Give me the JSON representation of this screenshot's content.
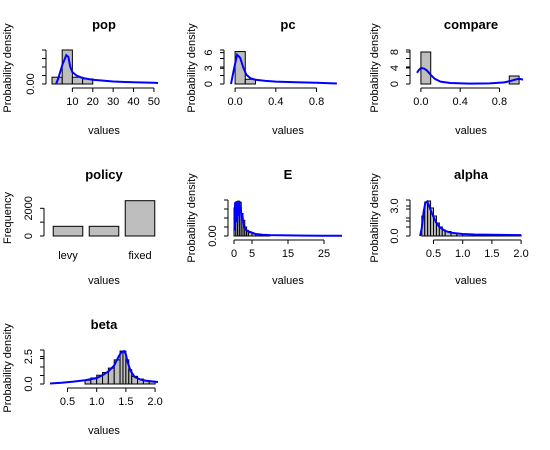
{
  "chart_data": [
    {
      "id": "pop",
      "type": "histogram",
      "title": "pop",
      "xlabel": "values",
      "ylabel": "Probability density",
      "xlim": [
        0,
        52
      ],
      "ylim": [
        0,
        0.2
      ],
      "xticks": [
        10,
        20,
        30,
        40,
        50
      ],
      "yticks": [
        0.0
      ],
      "ytick_labels": [
        "0.00"
      ],
      "bins": [
        [
          0,
          5,
          0.04
        ],
        [
          5,
          10,
          0.2
        ],
        [
          10,
          15,
          0.04
        ],
        [
          15,
          20,
          0.03
        ]
      ],
      "density_x": [
        2,
        3,
        5,
        7,
        8,
        9,
        10,
        12,
        15,
        20,
        25,
        30,
        40,
        50,
        52
      ],
      "density_y": [
        0.0,
        0.03,
        0.11,
        0.17,
        0.16,
        0.1,
        0.07,
        0.05,
        0.035,
        0.025,
        0.02,
        0.015,
        0.01,
        0.007,
        0.006
      ]
    },
    {
      "id": "pc",
      "type": "histogram",
      "title": "pc",
      "xlabel": "values",
      "ylabel": "Probability density",
      "xlim": [
        -0.05,
        1.05
      ],
      "ylim": [
        0,
        6.5
      ],
      "xticks": [
        0.0,
        0.4,
        0.8
      ],
      "xtick_labels": [
        "0.0",
        "0.4",
        "0.8"
      ],
      "yticks": [
        0,
        3,
        6
      ],
      "ytick_labels": [
        "0",
        "3",
        "6"
      ],
      "bins": [
        [
          0.0,
          0.1,
          6.2
        ],
        [
          0.1,
          0.2,
          0.9
        ]
      ],
      "density_x": [
        -0.04,
        -0.01,
        0.02,
        0.05,
        0.08,
        0.11,
        0.15,
        0.2,
        0.3,
        0.4,
        0.6,
        0.8,
        1.0
      ],
      "density_y": [
        0.0,
        3.0,
        5.6,
        5.0,
        3.2,
        1.8,
        1.1,
        0.8,
        0.6,
        0.45,
        0.35,
        0.25,
        0.1
      ]
    },
    {
      "id": "compare",
      "type": "histogram",
      "title": "compare",
      "xlabel": "values",
      "ylabel": "Probability density",
      "xlim": [
        -0.05,
        1.05
      ],
      "ylim": [
        0,
        8.5
      ],
      "xticks": [
        0.0,
        0.4,
        0.8
      ],
      "xtick_labels": [
        "0.0",
        "0.4",
        "0.8"
      ],
      "yticks": [
        0,
        4,
        8
      ],
      "ytick_labels": [
        "0",
        "4",
        "8"
      ],
      "bins": [
        [
          0.0,
          0.1,
          8.0
        ],
        [
          0.9,
          1.0,
          2.0
        ]
      ],
      "density_x": [
        -0.04,
        -0.02,
        0.0,
        0.03,
        0.06,
        0.1,
        0.14,
        0.2,
        0.3,
        0.5,
        0.7,
        0.85,
        0.92,
        0.96,
        1.0,
        1.04
      ],
      "density_y": [
        2.8,
        3.5,
        4.0,
        3.9,
        3.4,
        2.3,
        1.3,
        0.6,
        0.25,
        0.1,
        0.15,
        0.4,
        0.8,
        1.1,
        1.3,
        1.1
      ]
    },
    {
      "id": "policy",
      "type": "bar",
      "title": "policy",
      "xlabel": "values",
      "ylabel": "Frequency",
      "categories": [
        "levy",
        "",
        "fixed"
      ],
      "values": [
        700,
        700,
        2550
      ],
      "ylim": [
        0,
        2600
      ],
      "yticks": [
        0,
        1000,
        2000
      ],
      "ytick_labels": [
        "0",
        "",
        "2000"
      ]
    },
    {
      "id": "E",
      "type": "histogram",
      "title": "E",
      "xlabel": "values",
      "ylabel": "Probability density",
      "xlim": [
        0,
        30
      ],
      "ylim": [
        0,
        0.32
      ],
      "xticks": [
        0,
        5,
        15,
        25
      ],
      "yticks": [
        0.0
      ],
      "ytick_labels": [
        "0.00"
      ],
      "bins": [
        [
          0,
          0.5,
          0.25
        ],
        [
          0.5,
          1.0,
          0.3
        ],
        [
          1.0,
          1.5,
          0.31
        ],
        [
          1.5,
          2.0,
          0.3
        ],
        [
          2.0,
          2.5,
          0.2
        ],
        [
          2.5,
          3.0,
          0.14
        ],
        [
          3.0,
          3.5,
          0.08
        ],
        [
          3.5,
          4.0,
          0.05
        ],
        [
          4.0,
          5.0,
          0.03
        ],
        [
          5.0,
          6.0,
          0.02
        ],
        [
          6.0,
          8.0,
          0.012
        ],
        [
          8.0,
          10.0,
          0.006
        ]
      ],
      "density_x": [
        0.1,
        0.3,
        0.5,
        0.7,
        0.9,
        1.1,
        1.3,
        1.5,
        1.7,
        1.9,
        2.1,
        2.3,
        2.6,
        3.0,
        3.5,
        4.0,
        5.0,
        6.0,
        8.0,
        10.0,
        15.0,
        20.0,
        25.0,
        30.0
      ],
      "density_y": [
        0.05,
        0.3,
        0.15,
        0.31,
        0.12,
        0.3,
        0.18,
        0.31,
        0.2,
        0.26,
        0.14,
        0.2,
        0.1,
        0.07,
        0.05,
        0.04,
        0.03,
        0.018,
        0.012,
        0.008,
        0.005,
        0.004,
        0.003,
        0.002
      ]
    },
    {
      "id": "alpha",
      "type": "histogram",
      "title": "alpha",
      "xlabel": "values",
      "ylabel": "Probability density",
      "xlim": [
        0.2,
        2.05
      ],
      "ylim": [
        0,
        3.6
      ],
      "xticks": [
        0.5,
        1.0,
        1.5,
        2.0
      ],
      "xtick_labels": [
        "0.5",
        "1.0",
        "1.5",
        "2.0"
      ],
      "yticks": [
        0.0,
        1.5,
        3.0
      ],
      "ytick_labels": [
        "0.0",
        "",
        "3.0"
      ],
      "bins": [
        [
          0.3,
          0.35,
          2.0
        ],
        [
          0.35,
          0.4,
          3.4
        ],
        [
          0.4,
          0.45,
          3.5
        ],
        [
          0.45,
          0.5,
          2.8
        ],
        [
          0.5,
          0.55,
          2.0
        ],
        [
          0.55,
          0.6,
          1.3
        ],
        [
          0.6,
          0.65,
          0.9
        ],
        [
          0.65,
          0.7,
          0.6
        ],
        [
          0.7,
          0.8,
          0.45
        ],
        [
          0.8,
          0.9,
          0.3
        ],
        [
          0.9,
          1.0,
          0.22
        ],
        [
          1.0,
          1.2,
          0.16
        ],
        [
          1.2,
          1.4,
          0.12
        ],
        [
          1.4,
          1.6,
          0.1
        ],
        [
          1.6,
          1.8,
          0.08
        ],
        [
          1.8,
          2.0,
          0.07
        ]
      ],
      "density_x": [
        0.27,
        0.3,
        0.33,
        0.36,
        0.39,
        0.42,
        0.45,
        0.5,
        0.55,
        0.6,
        0.7,
        0.8,
        1.0,
        1.2,
        1.5,
        1.8,
        2.0
      ],
      "density_y": [
        0.0,
        0.8,
        2.4,
        3.3,
        3.45,
        3.1,
        2.6,
        1.9,
        1.3,
        0.9,
        0.5,
        0.33,
        0.2,
        0.15,
        0.12,
        0.1,
        0.09
      ]
    },
    {
      "id": "beta",
      "type": "histogram",
      "title": "beta",
      "xlabel": "values",
      "ylabel": "Probability density",
      "xlim": [
        0.2,
        2.05
      ],
      "ylim": [
        0,
        3.1
      ],
      "xticks": [
        0.5,
        1.0,
        1.5,
        2.0
      ],
      "xtick_labels": [
        "0.5",
        "1.0",
        "1.5",
        "2.0"
      ],
      "yticks": [
        0.0,
        2.5
      ],
      "ytick_labels": [
        "0.0",
        "2.5"
      ],
      "bins": [
        [
          0.8,
          0.9,
          0.35
        ],
        [
          0.9,
          1.0,
          0.55
        ],
        [
          1.0,
          1.1,
          0.8
        ],
        [
          1.1,
          1.2,
          1.05
        ],
        [
          1.2,
          1.3,
          1.45
        ],
        [
          1.3,
          1.4,
          2.2
        ],
        [
          1.4,
          1.45,
          3.0
        ],
        [
          1.45,
          1.5,
          3.0
        ],
        [
          1.5,
          1.55,
          2.2
        ],
        [
          1.55,
          1.6,
          1.3
        ],
        [
          1.6,
          1.7,
          0.7
        ],
        [
          1.7,
          1.8,
          0.45
        ],
        [
          1.8,
          1.9,
          0.3
        ],
        [
          1.9,
          2.0,
          0.25
        ]
      ],
      "density_x": [
        0.2,
        0.4,
        0.6,
        0.8,
        1.0,
        1.1,
        1.2,
        1.3,
        1.38,
        1.43,
        1.47,
        1.5,
        1.53,
        1.58,
        1.65,
        1.75,
        1.85,
        2.0,
        2.05
      ],
      "density_y": [
        0.05,
        0.12,
        0.22,
        0.35,
        0.55,
        0.8,
        1.15,
        1.7,
        2.55,
        2.95,
        3.0,
        2.7,
        2.0,
        1.2,
        0.65,
        0.4,
        0.3,
        0.2,
        0.18
      ]
    }
  ]
}
